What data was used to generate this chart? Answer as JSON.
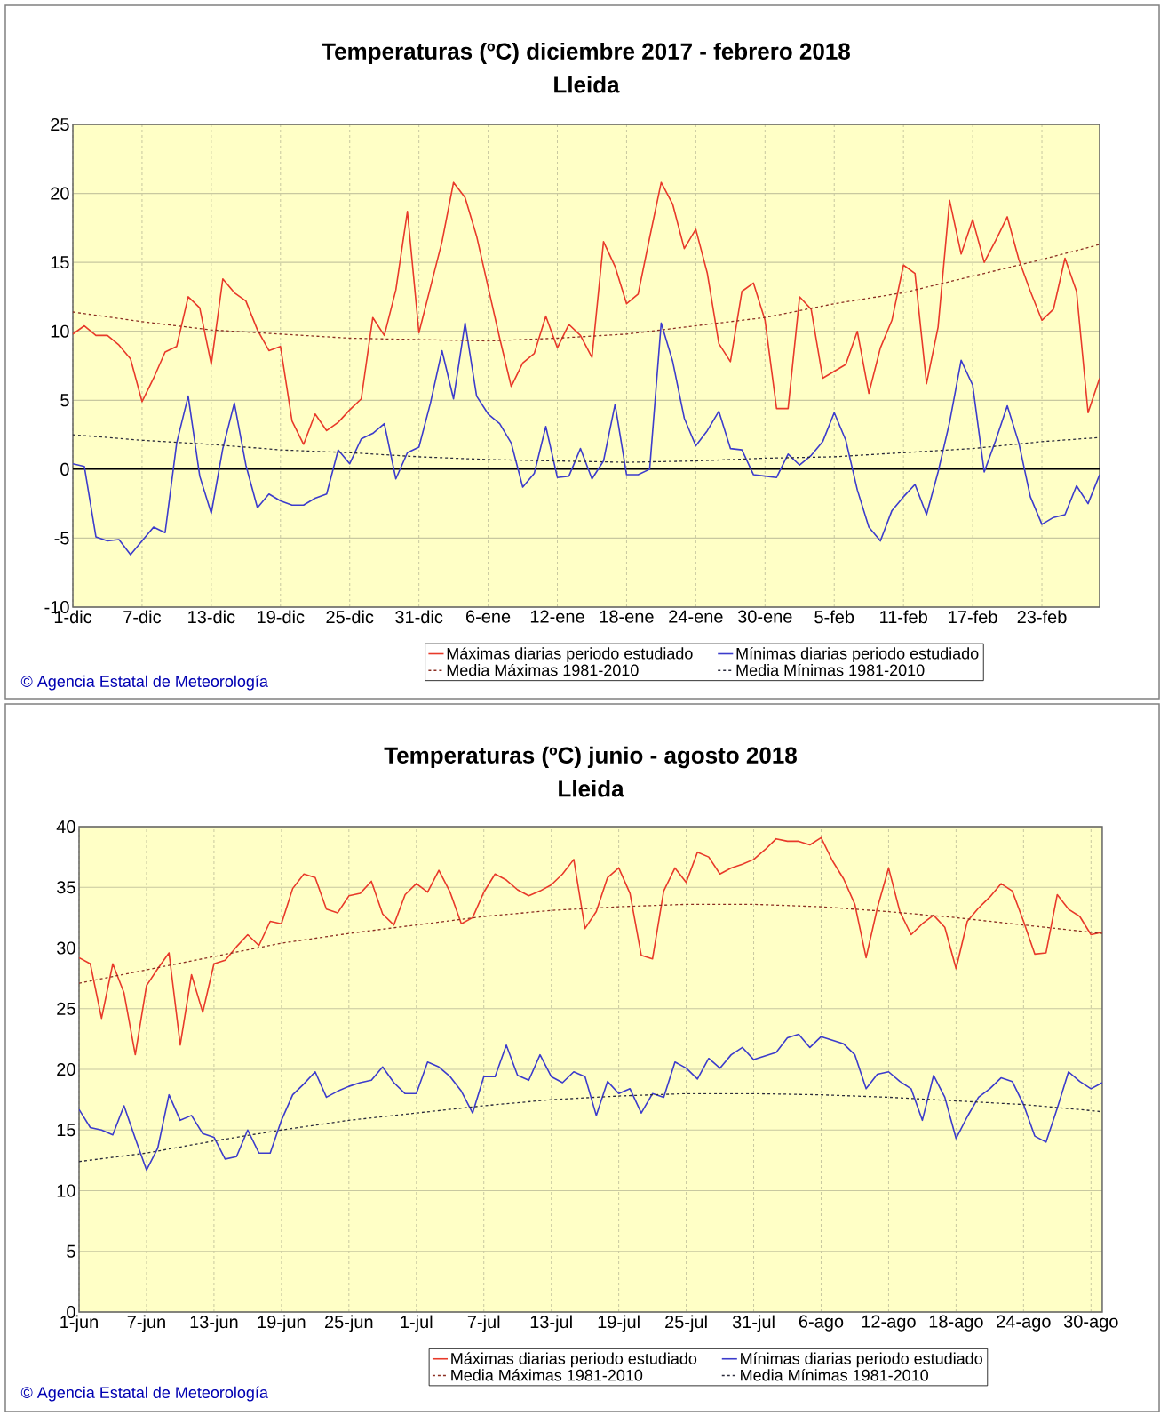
{
  "chart_data": [
    {
      "type": "line",
      "title": "Temperaturas (ºC) diciembre 2017 - febrero 2018",
      "subtitle": "Lleida",
      "x": [
        "2017-12-01",
        "2017-12-02",
        "2017-12-03",
        "2017-12-04",
        "2017-12-05",
        "2017-12-06",
        "2017-12-07",
        "2017-12-08",
        "2017-12-09",
        "2017-12-10",
        "2017-12-11",
        "2017-12-12",
        "2017-12-13",
        "2017-12-14",
        "2017-12-15",
        "2017-12-16",
        "2017-12-17",
        "2017-12-18",
        "2017-12-19",
        "2017-12-20",
        "2017-12-21",
        "2017-12-22",
        "2017-12-23",
        "2017-12-24",
        "2017-12-25",
        "2017-12-26",
        "2017-12-27",
        "2017-12-28",
        "2017-12-29",
        "2017-12-30",
        "2017-12-31",
        "2018-01-01",
        "2018-01-02",
        "2018-01-03",
        "2018-01-04",
        "2018-01-05",
        "2018-01-06",
        "2018-01-07",
        "2018-01-08",
        "2018-01-09",
        "2018-01-10",
        "2018-01-11",
        "2018-01-12",
        "2018-01-13",
        "2018-01-14",
        "2018-01-15",
        "2018-01-16",
        "2018-01-17",
        "2018-01-18",
        "2018-01-19",
        "2018-01-20",
        "2018-01-21",
        "2018-01-22",
        "2018-01-23",
        "2018-01-24",
        "2018-01-25",
        "2018-01-26",
        "2018-01-27",
        "2018-01-28",
        "2018-01-29",
        "2018-01-30",
        "2018-01-31",
        "2018-02-01",
        "2018-02-02",
        "2018-02-03",
        "2018-02-04",
        "2018-02-05",
        "2018-02-06",
        "2018-02-07",
        "2018-02-08",
        "2018-02-09",
        "2018-02-10",
        "2018-02-11",
        "2018-02-12",
        "2018-02-13",
        "2018-02-14",
        "2018-02-15",
        "2018-02-16",
        "2018-02-17",
        "2018-02-18",
        "2018-02-19",
        "2018-02-20",
        "2018-02-21",
        "2018-02-22",
        "2018-02-23",
        "2018-02-24",
        "2018-02-25",
        "2018-02-26",
        "2018-02-27",
        "2018-02-28"
      ],
      "xlim": [
        "2017-12-01",
        "2018-02-28"
      ],
      "xticks": [
        {
          "value": "2017-12-01",
          "label": "1-dic"
        },
        {
          "value": "2017-12-07",
          "label": "7-dic"
        },
        {
          "value": "2017-12-13",
          "label": "13-dic"
        },
        {
          "value": "2017-12-19",
          "label": "19-dic"
        },
        {
          "value": "2017-12-25",
          "label": "25-dic"
        },
        {
          "value": "2017-12-31",
          "label": "31-dic"
        },
        {
          "value": "2018-01-06",
          "label": "6-ene"
        },
        {
          "value": "2018-01-12",
          "label": "12-ene"
        },
        {
          "value": "2018-01-18",
          "label": "18-ene"
        },
        {
          "value": "2018-01-24",
          "label": "24-ene"
        },
        {
          "value": "2018-01-30",
          "label": "30-ene"
        },
        {
          "value": "2018-02-05",
          "label": "5-feb"
        },
        {
          "value": "2018-02-11",
          "label": "11-feb"
        },
        {
          "value": "2018-02-17",
          "label": "17-feb"
        },
        {
          "value": "2018-02-23",
          "label": "23-feb"
        }
      ],
      "ylim": [
        -10,
        25
      ],
      "yticks": [
        -10,
        -5,
        0,
        5,
        10,
        15,
        20,
        25
      ],
      "grid": true,
      "legend": "bottom",
      "marker": "none",
      "ref_lines": [
        {
          "axis": "y",
          "value": 0,
          "color": "#000000"
        }
      ],
      "annotations": [
        "© Agencia Estatal de Meteorología"
      ],
      "series": [
        {
          "name": "Máximas diarias periodo estudiado",
          "color": "#e83a2a",
          "line_style": "solid",
          "values": [
            9.8,
            10.4,
            9.7,
            9.7,
            9.0,
            8.0,
            4.9,
            6.6,
            8.5,
            8.9,
            12.5,
            11.7,
            7.6,
            13.8,
            12.8,
            12.2,
            10.1,
            8.6,
            8.9,
            3.5,
            1.8,
            4.0,
            2.8,
            3.4,
            4.3,
            5.1,
            11.0,
            9.7,
            13.0,
            18.7,
            9.9,
            13.2,
            16.5,
            20.8,
            19.7,
            16.9,
            13.2,
            9.5,
            6.0,
            7.7,
            8.4,
            11.1,
            8.8,
            10.5,
            9.7,
            8.1,
            16.5,
            14.7,
            12.0,
            12.7,
            16.8,
            20.8,
            19.2,
            16.0,
            17.4,
            14.2,
            9.1,
            7.8,
            12.9,
            13.5,
            10.8,
            4.4,
            4.4,
            12.5,
            11.6,
            6.6,
            7.1,
            7.6,
            10.0,
            5.5,
            8.8,
            10.8,
            14.8,
            14.2,
            6.2,
            10.3,
            19.5,
            15.6,
            18.1,
            15.0,
            16.6,
            18.3,
            15.2,
            12.9,
            10.8,
            11.6,
            15.3,
            12.9,
            4.1,
            6.6
          ]
        },
        {
          "name": "Mínimas diarias periodo estudiado",
          "color": "#3c3ccc",
          "line_style": "solid",
          "values": [
            0.4,
            0.2,
            -4.9,
            -5.2,
            -5.1,
            -6.2,
            -5.2,
            -4.2,
            -4.6,
            1.9,
            5.3,
            -0.5,
            -3.2,
            1.5,
            4.8,
            0.3,
            -2.8,
            -1.8,
            -2.3,
            -2.6,
            -2.6,
            -2.1,
            -1.8,
            1.4,
            0.4,
            2.2,
            2.6,
            3.3,
            -0.7,
            1.2,
            1.6,
            4.8,
            8.6,
            5.1,
            10.6,
            5.3,
            4.0,
            3.3,
            1.9,
            -1.3,
            -0.3,
            3.1,
            -0.6,
            -0.5,
            1.5,
            -0.7,
            0.6,
            4.7,
            -0.4,
            -0.4,
            0.0,
            10.6,
            7.8,
            3.7,
            1.7,
            2.8,
            4.2,
            1.5,
            1.4,
            -0.4,
            -0.5,
            -0.6,
            1.1,
            0.3,
            1.0,
            2.0,
            4.1,
            2.1,
            -1.5,
            -4.2,
            -5.2,
            -3.0,
            -2.0,
            -1.1,
            -3.3,
            -0.2,
            3.4,
            7.9,
            6.1,
            -0.2,
            2.1,
            4.6,
            1.9,
            -2.0,
            -4.0,
            -3.5,
            -3.3,
            -1.2,
            -2.5,
            -0.4
          ]
        },
        {
          "name": "Media Máximas 1981-2010",
          "color": "#8b2e22",
          "line_style": "dashed",
          "x": [
            "2017-12-01",
            "2017-12-07",
            "2017-12-13",
            "2017-12-19",
            "2017-12-25",
            "2017-12-31",
            "2018-01-06",
            "2018-01-12",
            "2018-01-18",
            "2018-01-24",
            "2018-01-30",
            "2018-02-05",
            "2018-02-11",
            "2018-02-17",
            "2018-02-23",
            "2018-02-28"
          ],
          "values": [
            11.4,
            10.7,
            10.1,
            9.8,
            9.5,
            9.4,
            9.3,
            9.5,
            9.8,
            10.4,
            11.0,
            12.0,
            12.8,
            14.0,
            15.2,
            16.3
          ]
        },
        {
          "name": "Media Mínimas 1981-2010",
          "color": "#2b2b3b",
          "line_style": "dashed",
          "x": [
            "2017-12-01",
            "2017-12-07",
            "2017-12-13",
            "2017-12-19",
            "2017-12-25",
            "2017-12-31",
            "2018-01-06",
            "2018-01-12",
            "2018-01-18",
            "2018-01-24",
            "2018-01-30",
            "2018-02-05",
            "2018-02-11",
            "2018-02-17",
            "2018-02-23",
            "2018-02-28"
          ],
          "values": [
            2.5,
            2.1,
            1.8,
            1.4,
            1.2,
            0.9,
            0.7,
            0.6,
            0.5,
            0.6,
            0.8,
            0.9,
            1.2,
            1.5,
            2.0,
            2.3
          ]
        }
      ]
    },
    {
      "type": "line",
      "title": "Temperaturas (ºC) junio - agosto 2018",
      "subtitle": "Lleida",
      "x": [
        "2018-06-01",
        "2018-06-02",
        "2018-06-03",
        "2018-06-04",
        "2018-06-05",
        "2018-06-06",
        "2018-06-07",
        "2018-06-08",
        "2018-06-09",
        "2018-06-10",
        "2018-06-11",
        "2018-06-12",
        "2018-06-13",
        "2018-06-14",
        "2018-06-15",
        "2018-06-16",
        "2018-06-17",
        "2018-06-18",
        "2018-06-19",
        "2018-06-20",
        "2018-06-21",
        "2018-06-22",
        "2018-06-23",
        "2018-06-24",
        "2018-06-25",
        "2018-06-26",
        "2018-06-27",
        "2018-06-28",
        "2018-06-29",
        "2018-06-30",
        "2018-07-01",
        "2018-07-02",
        "2018-07-03",
        "2018-07-04",
        "2018-07-05",
        "2018-07-06",
        "2018-07-07",
        "2018-07-08",
        "2018-07-09",
        "2018-07-10",
        "2018-07-11",
        "2018-07-12",
        "2018-07-13",
        "2018-07-14",
        "2018-07-15",
        "2018-07-16",
        "2018-07-17",
        "2018-07-18",
        "2018-07-19",
        "2018-07-20",
        "2018-07-21",
        "2018-07-22",
        "2018-07-23",
        "2018-07-24",
        "2018-07-25",
        "2018-07-26",
        "2018-07-27",
        "2018-07-28",
        "2018-07-29",
        "2018-07-30",
        "2018-07-31",
        "2018-08-01",
        "2018-08-02",
        "2018-08-03",
        "2018-08-04",
        "2018-08-05",
        "2018-08-06",
        "2018-08-07",
        "2018-08-08",
        "2018-08-09",
        "2018-08-10",
        "2018-08-11",
        "2018-08-12",
        "2018-08-13",
        "2018-08-14",
        "2018-08-15",
        "2018-08-16",
        "2018-08-17",
        "2018-08-18",
        "2018-08-19",
        "2018-08-20",
        "2018-08-21",
        "2018-08-22",
        "2018-08-23",
        "2018-08-24",
        "2018-08-25",
        "2018-08-26",
        "2018-08-27",
        "2018-08-28",
        "2018-08-29",
        "2018-08-30",
        "2018-08-31"
      ],
      "xlim": [
        "2018-06-01",
        "2018-08-31"
      ],
      "xticks": [
        {
          "value": "2018-06-01",
          "label": "1-jun"
        },
        {
          "value": "2018-06-07",
          "label": "7-jun"
        },
        {
          "value": "2018-06-13",
          "label": "13-jun"
        },
        {
          "value": "2018-06-19",
          "label": "19-jun"
        },
        {
          "value": "2018-06-25",
          "label": "25-jun"
        },
        {
          "value": "2018-07-01",
          "label": "1-jul"
        },
        {
          "value": "2018-07-07",
          "label": "7-jul"
        },
        {
          "value": "2018-07-13",
          "label": "13-jul"
        },
        {
          "value": "2018-07-19",
          "label": "19-jul"
        },
        {
          "value": "2018-07-25",
          "label": "25-jul"
        },
        {
          "value": "2018-07-31",
          "label": "31-jul"
        },
        {
          "value": "2018-08-06",
          "label": "6-ago"
        },
        {
          "value": "2018-08-12",
          "label": "12-ago"
        },
        {
          "value": "2018-08-18",
          "label": "18-ago"
        },
        {
          "value": "2018-08-24",
          "label": "24-ago"
        },
        {
          "value": "2018-08-30",
          "label": "30-ago"
        }
      ],
      "ylim": [
        0,
        40
      ],
      "yticks": [
        0,
        5,
        10,
        15,
        20,
        25,
        30,
        35,
        40
      ],
      "grid": true,
      "legend": "bottom",
      "marker": "none",
      "annotations": [
        "© Agencia Estatal de Meteorología"
      ],
      "series": [
        {
          "name": "Máximas diarias periodo estudiado",
          "color": "#e83a2a",
          "line_style": "solid",
          "values": [
            29.2,
            28.7,
            24.2,
            28.7,
            26.3,
            21.2,
            26.9,
            28.3,
            29.6,
            22.0,
            27.8,
            24.7,
            28.7,
            29.0,
            30.1,
            31.1,
            30.2,
            32.2,
            32.0,
            34.9,
            36.1,
            35.8,
            33.2,
            32.9,
            34.3,
            34.5,
            35.5,
            32.8,
            31.9,
            34.4,
            35.3,
            34.6,
            36.4,
            34.6,
            32.0,
            32.5,
            34.6,
            36.1,
            35.6,
            34.8,
            34.3,
            34.7,
            35.2,
            36.1,
            37.3,
            31.6,
            33.0,
            35.8,
            36.6,
            34.5,
            29.4,
            29.1,
            34.7,
            36.6,
            35.4,
            37.9,
            37.5,
            36.1,
            36.6,
            36.9,
            37.3,
            38.1,
            39.0,
            38.8,
            38.8,
            38.5,
            39.1,
            37.2,
            35.7,
            33.6,
            29.2,
            33.3,
            36.6,
            33.0,
            31.1,
            32.0,
            32.7,
            31.7,
            28.3,
            32.2,
            33.3,
            34.2,
            35.3,
            34.7,
            32.2,
            29.5,
            29.6,
            34.4,
            33.2,
            32.6,
            31.1,
            31.3
          ]
        },
        {
          "name": "Mínimas diarias periodo estudiado",
          "color": "#3c3ccc",
          "line_style": "solid",
          "values": [
            16.7,
            15.2,
            15.0,
            14.6,
            17.0,
            14.3,
            11.7,
            13.5,
            17.9,
            15.8,
            16.2,
            14.7,
            14.4,
            12.6,
            12.8,
            15.0,
            13.1,
            13.1,
            15.8,
            17.9,
            18.8,
            19.8,
            17.7,
            18.2,
            18.6,
            18.9,
            19.1,
            20.2,
            18.9,
            18.0,
            18.0,
            20.6,
            20.2,
            19.4,
            18.2,
            16.4,
            19.4,
            19.4,
            22.0,
            19.5,
            19.1,
            21.2,
            19.4,
            18.9,
            19.8,
            19.4,
            16.2,
            19.0,
            18.0,
            18.4,
            16.4,
            18.0,
            17.7,
            20.6,
            20.1,
            19.2,
            20.9,
            20.1,
            21.2,
            21.8,
            20.8,
            21.1,
            21.4,
            22.6,
            22.9,
            21.8,
            22.7,
            22.4,
            22.1,
            21.2,
            18.4,
            19.6,
            19.8,
            19.0,
            18.4,
            15.8,
            19.5,
            17.7,
            14.3,
            16.1,
            17.7,
            18.4,
            19.3,
            19.0,
            17.1,
            14.5,
            14.0,
            16.8,
            19.8,
            19.0,
            18.4,
            18.9
          ]
        },
        {
          "name": "Media Máximas 1981-2010",
          "color": "#8b2e22",
          "line_style": "dashed",
          "x": [
            "2018-06-01",
            "2018-06-07",
            "2018-06-13",
            "2018-06-19",
            "2018-06-25",
            "2018-07-01",
            "2018-07-07",
            "2018-07-13",
            "2018-07-19",
            "2018-07-25",
            "2018-07-31",
            "2018-08-06",
            "2018-08-12",
            "2018-08-18",
            "2018-08-24",
            "2018-08-30",
            "2018-08-31"
          ],
          "values": [
            27.1,
            28.2,
            29.3,
            30.4,
            31.2,
            31.9,
            32.6,
            33.1,
            33.4,
            33.6,
            33.6,
            33.4,
            33.0,
            32.5,
            31.9,
            31.3,
            31.2
          ]
        },
        {
          "name": "Media Mínimas 1981-2010",
          "color": "#2b2b3b",
          "line_style": "dashed",
          "x": [
            "2018-06-01",
            "2018-06-07",
            "2018-06-13",
            "2018-06-19",
            "2018-06-25",
            "2018-07-01",
            "2018-07-07",
            "2018-07-13",
            "2018-07-19",
            "2018-07-25",
            "2018-07-31",
            "2018-08-06",
            "2018-08-12",
            "2018-08-18",
            "2018-08-24",
            "2018-08-30",
            "2018-08-31"
          ],
          "values": [
            12.4,
            13.1,
            14.1,
            15.0,
            15.8,
            16.4,
            17.0,
            17.5,
            17.8,
            18.0,
            18.0,
            17.9,
            17.7,
            17.4,
            17.1,
            16.6,
            16.5
          ]
        }
      ]
    }
  ]
}
